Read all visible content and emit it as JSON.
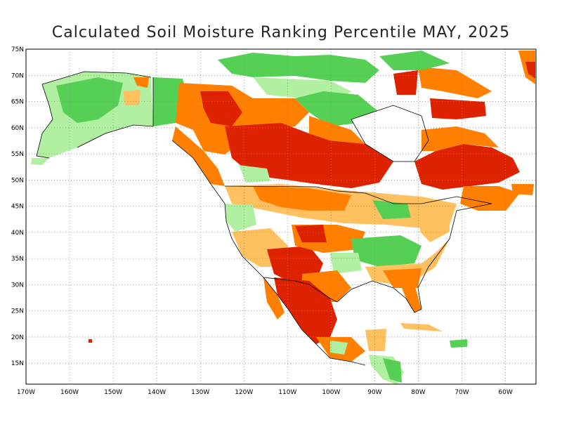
{
  "title": "Calculated Soil Moisture Ranking Percentile MAY, 2025",
  "map": {
    "lon_range": [
      -170,
      -53
    ],
    "lat_range": [
      11,
      75
    ],
    "lat_ticks": [
      {
        "value": 75,
        "label": "75N"
      },
      {
        "value": 70,
        "label": "70N"
      },
      {
        "value": 65,
        "label": "65N"
      },
      {
        "value": 60,
        "label": "60N"
      },
      {
        "value": 55,
        "label": "55N"
      },
      {
        "value": 50,
        "label": "50N"
      },
      {
        "value": 45,
        "label": "45N"
      },
      {
        "value": 40,
        "label": "40N"
      },
      {
        "value": 35,
        "label": "35N"
      },
      {
        "value": 30,
        "label": "30N"
      },
      {
        "value": 25,
        "label": "25N"
      },
      {
        "value": 20,
        "label": "20N"
      },
      {
        "value": 15,
        "label": "15N"
      }
    ],
    "lon_ticks": [
      {
        "value": -170,
        "label": "170W"
      },
      {
        "value": -160,
        "label": "160W"
      },
      {
        "value": -150,
        "label": "150W"
      },
      {
        "value": -140,
        "label": "140W"
      },
      {
        "value": -130,
        "label": "130W"
      },
      {
        "value": -120,
        "label": "120W"
      },
      {
        "value": -110,
        "label": "110W"
      },
      {
        "value": -100,
        "label": "100W"
      },
      {
        "value": -90,
        "label": "90W"
      },
      {
        "value": -80,
        "label": "80W"
      },
      {
        "value": -70,
        "label": "70W"
      },
      {
        "value": -60,
        "label": "60W"
      }
    ],
    "colors": {
      "very_dry": "#dd2200",
      "dry": "#ff7f00",
      "somewhat_dry": "#ffc060",
      "somewhat_wet": "#b0f0a0",
      "wet": "#55d055",
      "very_wet": "#22a022",
      "outline": "#000000"
    }
  }
}
